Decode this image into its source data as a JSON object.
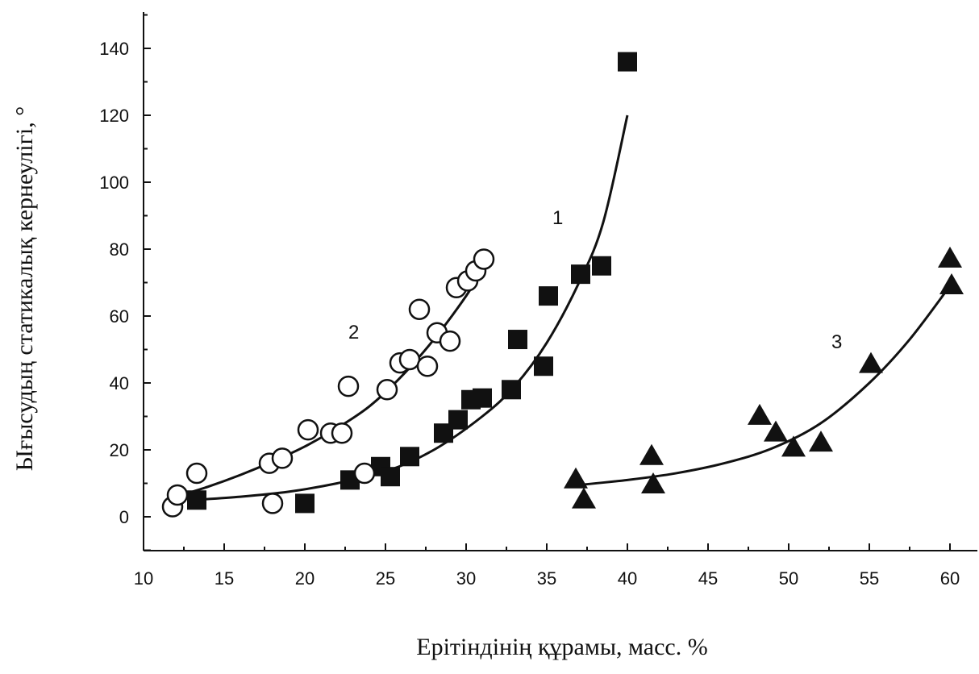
{
  "chart_data": {
    "type": "scatter",
    "xlabel": "Ерітіндінің құрамы, масс. %",
    "ylabel": "Ығысудың статикалық кернеулігі, °",
    "xlim": [
      10,
      62
    ],
    "ylim": [
      -10,
      150
    ],
    "xticks": [
      10,
      15,
      20,
      25,
      30,
      35,
      40,
      45,
      50,
      55,
      60
    ],
    "yticks": [
      0,
      20,
      40,
      60,
      80,
      100,
      120,
      140
    ],
    "grid": false,
    "legend": "none",
    "series": [
      {
        "curve_label": "1",
        "marker": "filled-square",
        "points": [
          [
            13.3,
            5
          ],
          [
            20,
            4
          ],
          [
            22.8,
            11
          ],
          [
            24.7,
            15
          ],
          [
            25.3,
            12
          ],
          [
            26.5,
            18
          ],
          [
            28.6,
            25
          ],
          [
            29.5,
            29
          ],
          [
            30.3,
            35
          ],
          [
            31,
            35.5
          ],
          [
            32.8,
            38
          ],
          [
            33.2,
            53
          ],
          [
            34.8,
            45
          ],
          [
            35.1,
            66
          ],
          [
            37.1,
            72.5
          ],
          [
            38.4,
            75
          ],
          [
            40,
            136
          ]
        ],
        "fit_curve": [
          [
            13,
            5
          ],
          [
            16,
            6
          ],
          [
            19,
            7.5
          ],
          [
            22,
            10
          ],
          [
            25,
            13.5
          ],
          [
            28,
            20
          ],
          [
            31,
            30
          ],
          [
            33,
            39
          ],
          [
            35,
            52
          ],
          [
            37,
            70
          ],
          [
            38.5,
            88
          ],
          [
            40,
            120
          ]
        ]
      },
      {
        "curve_label": "2",
        "marker": "open-circle",
        "points": [
          [
            11.8,
            3
          ],
          [
            12.1,
            6.5
          ],
          [
            13.3,
            13
          ],
          [
            17.8,
            16
          ],
          [
            18,
            4
          ],
          [
            18.6,
            17.5
          ],
          [
            20.2,
            26
          ],
          [
            21.6,
            25
          ],
          [
            22.3,
            25
          ],
          [
            22.7,
            39
          ],
          [
            23.7,
            13
          ],
          [
            25.1,
            38
          ],
          [
            25.9,
            46
          ],
          [
            26.5,
            47
          ],
          [
            27.1,
            62
          ],
          [
            27.6,
            45
          ],
          [
            28.2,
            55
          ],
          [
            29,
            52.5
          ],
          [
            29.4,
            68.5
          ],
          [
            30.1,
            70.5
          ],
          [
            30.6,
            73.5
          ],
          [
            31.1,
            77
          ]
        ],
        "fit_curve": [
          [
            12,
            6
          ],
          [
            14,
            9
          ],
          [
            16,
            12.5
          ],
          [
            18,
            16.5
          ],
          [
            20,
            21
          ],
          [
            22,
            26.5
          ],
          [
            24,
            33
          ],
          [
            26,
            42
          ],
          [
            28,
            53
          ],
          [
            30,
            66
          ],
          [
            31,
            74
          ]
        ]
      },
      {
        "curve_label": "3",
        "marker": "filled-triangle",
        "points": [
          [
            36.8,
            11
          ],
          [
            37.3,
            5
          ],
          [
            41.5,
            18
          ],
          [
            41.6,
            9.5
          ],
          [
            48.2,
            30
          ],
          [
            49.2,
            25
          ],
          [
            50.3,
            20.5
          ],
          [
            52,
            22
          ],
          [
            55.1,
            45.5
          ],
          [
            60,
            77
          ],
          [
            60.1,
            69
          ]
        ],
        "fit_curve": [
          [
            37,
            9.5
          ],
          [
            40,
            11
          ],
          [
            43,
            13
          ],
          [
            46,
            16
          ],
          [
            49,
            20.5
          ],
          [
            52,
            28
          ],
          [
            55,
            40
          ],
          [
            57.5,
            53
          ],
          [
            60,
            69
          ]
        ]
      }
    ]
  }
}
